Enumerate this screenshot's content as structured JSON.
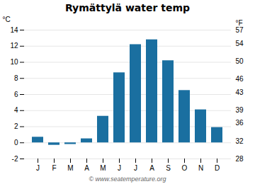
{
  "chart_data": {
    "type": "bar",
    "title": "Rymättylä water temp",
    "categories": [
      "J",
      "F",
      "M",
      "A",
      "M",
      "J",
      "J",
      "A",
      "S",
      "O",
      "N",
      "D"
    ],
    "values": [
      0.7,
      -0.3,
      -0.2,
      0.5,
      3.3,
      8.7,
      12.2,
      12.8,
      10.2,
      6.5,
      4.1,
      1.9
    ],
    "color": "#1a6fa0",
    "ylabel": "°C",
    "ylim": [
      -2,
      14
    ],
    "yticks": [
      -2,
      0,
      2,
      4,
      6,
      8,
      10,
      12,
      14
    ],
    "y2label": "°F",
    "y2lim": [
      28,
      57
    ],
    "y2ticks": [
      28,
      32,
      36,
      39,
      43,
      46,
      50,
      54,
      57
    ],
    "grid": true,
    "annotations": [
      "© www.seatemperature.org"
    ]
  }
}
